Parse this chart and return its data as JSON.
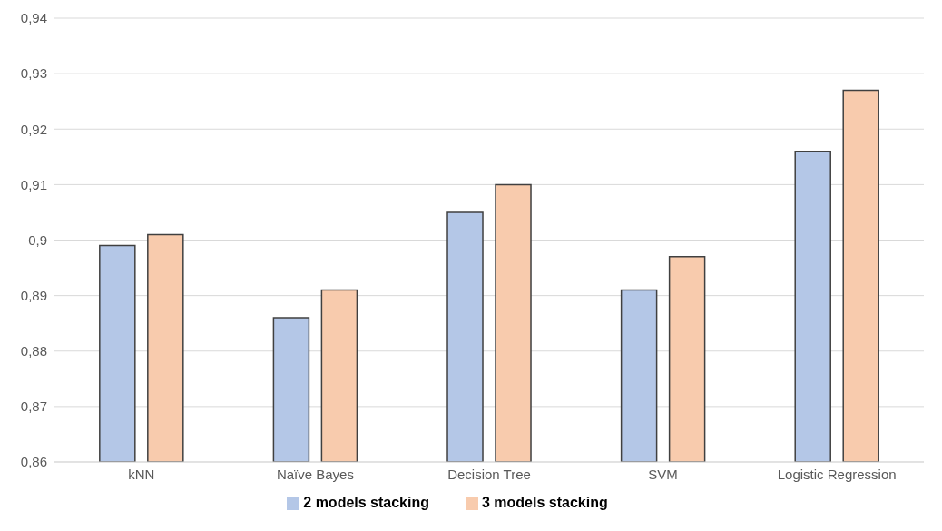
{
  "chart_data": {
    "type": "bar",
    "categories": [
      "kNN",
      "Naïve Bayes",
      "Decision Tree",
      "SVM",
      "Logistic Regression"
    ],
    "series": [
      {
        "name": "2 models stacking",
        "color": "#b4c7e7",
        "values": [
          0.899,
          0.886,
          0.905,
          0.891,
          0.916
        ]
      },
      {
        "name": "3 models stacking",
        "color": "#f8cbad",
        "values": [
          0.901,
          0.891,
          0.91,
          0.897,
          0.927
        ]
      }
    ],
    "ylim": [
      0.86,
      0.94
    ],
    "yticks": [
      {
        "value": 0.86,
        "label": "0,86"
      },
      {
        "value": 0.87,
        "label": "0,87"
      },
      {
        "value": 0.88,
        "label": "0,88"
      },
      {
        "value": 0.89,
        "label": "0,89"
      },
      {
        "value": 0.9,
        "label": "0,9"
      },
      {
        "value": 0.91,
        "label": "0,91"
      },
      {
        "value": 0.92,
        "label": "0,92"
      },
      {
        "value": 0.93,
        "label": "0,93"
      },
      {
        "value": 0.94,
        "label": "0,94"
      }
    ],
    "grid": "y",
    "legend": "bottom"
  }
}
